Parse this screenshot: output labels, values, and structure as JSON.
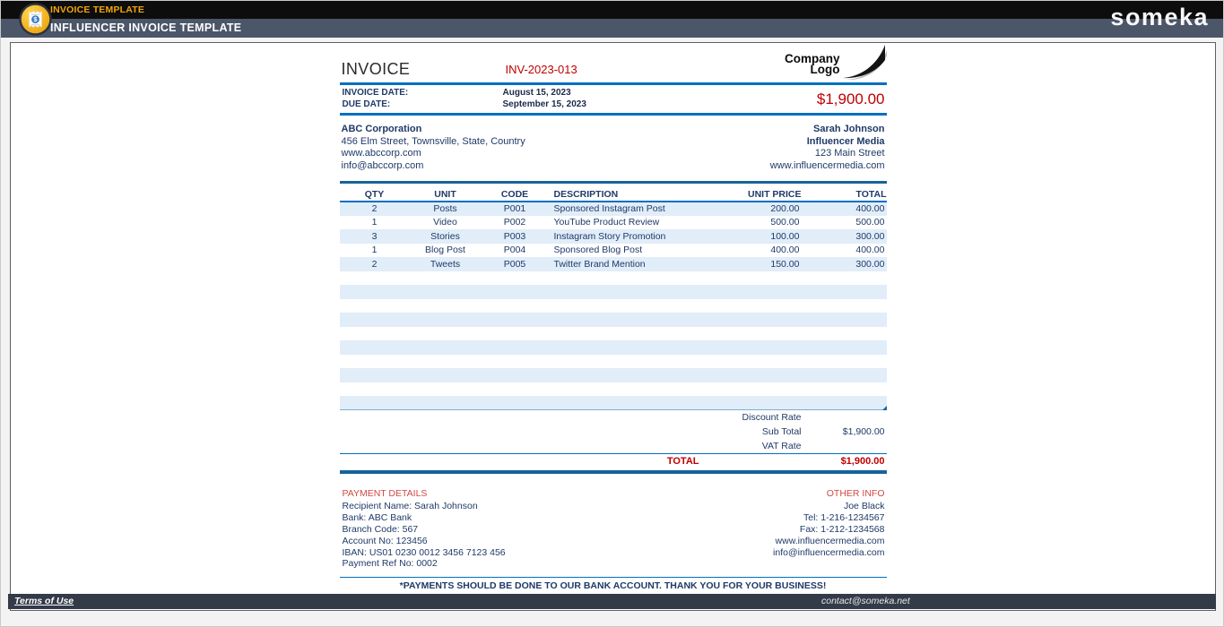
{
  "header": {
    "app_title": "INVOICE TEMPLATE",
    "page_title": "INFLUENCER INVOICE TEMPLATE",
    "brand": "someka"
  },
  "invoice": {
    "title": "INVOICE",
    "number": "INV-2023-013",
    "company_logo": {
      "line1": "Company",
      "line2": "Logo"
    },
    "invoice_date_label": "INVOICE DATE:",
    "invoice_date": "August 15, 2023",
    "due_date_label": "DUE DATE:",
    "due_date": "September 15, 2023",
    "amount_due": "$1,900.00",
    "bill_to": {
      "name": "ABC Corporation",
      "address": "456 Elm Street, Townsville, State, Country",
      "website": "www.abccorp.com",
      "email": "info@abccorp.com"
    },
    "from": {
      "name": "Sarah Johnson",
      "company": "Influencer Media",
      "address": "123 Main Street",
      "website": "www.influencermedia.com"
    },
    "table": {
      "headers": [
        "QTY",
        "UNIT",
        "CODE",
        "DESCRIPTION",
        "UNIT PRICE",
        "TOTAL"
      ],
      "rows": [
        {
          "qty": "2",
          "unit": "Posts",
          "code": "P001",
          "description": "Sponsored Instagram Post",
          "unit_price": "200.00",
          "total": "400.00"
        },
        {
          "qty": "1",
          "unit": "Video",
          "code": "P002",
          "description": "YouTube Product Review",
          "unit_price": "500.00",
          "total": "500.00"
        },
        {
          "qty": "3",
          "unit": "Stories",
          "code": "P003",
          "description": "Instagram Story Promotion",
          "unit_price": "100.00",
          "total": "300.00"
        },
        {
          "qty": "1",
          "unit": "Blog Post",
          "code": "P004",
          "description": "Sponsored Blog Post",
          "unit_price": "400.00",
          "total": "400.00"
        },
        {
          "qty": "2",
          "unit": "Tweets",
          "code": "P005",
          "description": "Twitter Brand Mention",
          "unit_price": "150.00",
          "total": "300.00"
        }
      ],
      "empty_rows": 10
    },
    "summary": {
      "rows": [
        {
          "label": "Discount Rate",
          "value": ""
        },
        {
          "label": "Sub Total",
          "value": "$1,900.00"
        },
        {
          "label": "VAT Rate",
          "value": ""
        }
      ],
      "total_label": "TOTAL",
      "total_value": "$1,900.00"
    },
    "payment_details": {
      "title": "PAYMENT DETAILS",
      "lines": [
        "Recipient Name: Sarah Johnson",
        "Bank: ABC Bank",
        "Branch Code: 567",
        "Account No: 123456",
        "IBAN: US01 0230 0012 3456 7123 456",
        "Payment Ref No: 0002"
      ]
    },
    "other_info": {
      "title": "OTHER INFO",
      "lines": [
        "Joe Black",
        "Tel: 1-216-1234567",
        "Fax: 1-212-1234568",
        "www.influencermedia.com",
        "info@influencermedia.com"
      ]
    },
    "footer_note": "*PAYMENTS SHOULD BE DONE TO OUR BANK ACCOUNT. THANK YOU FOR YOUR BUSINESS!"
  },
  "footer": {
    "terms": "Terms of Use",
    "contact": "contact@someka.net"
  },
  "colors": {
    "accent_blue": "#0070c0",
    "steel_blue": "#17639b",
    "navy_text": "#1f3a68",
    "red": "#c00000",
    "section_red": "#cf4a44",
    "row_stripe": "#e1edf8",
    "topbar_black": "#0d0d0d",
    "topbar_slate": "#4b5669",
    "bottombar": "#333b49",
    "gold": "#f2a50c"
  }
}
